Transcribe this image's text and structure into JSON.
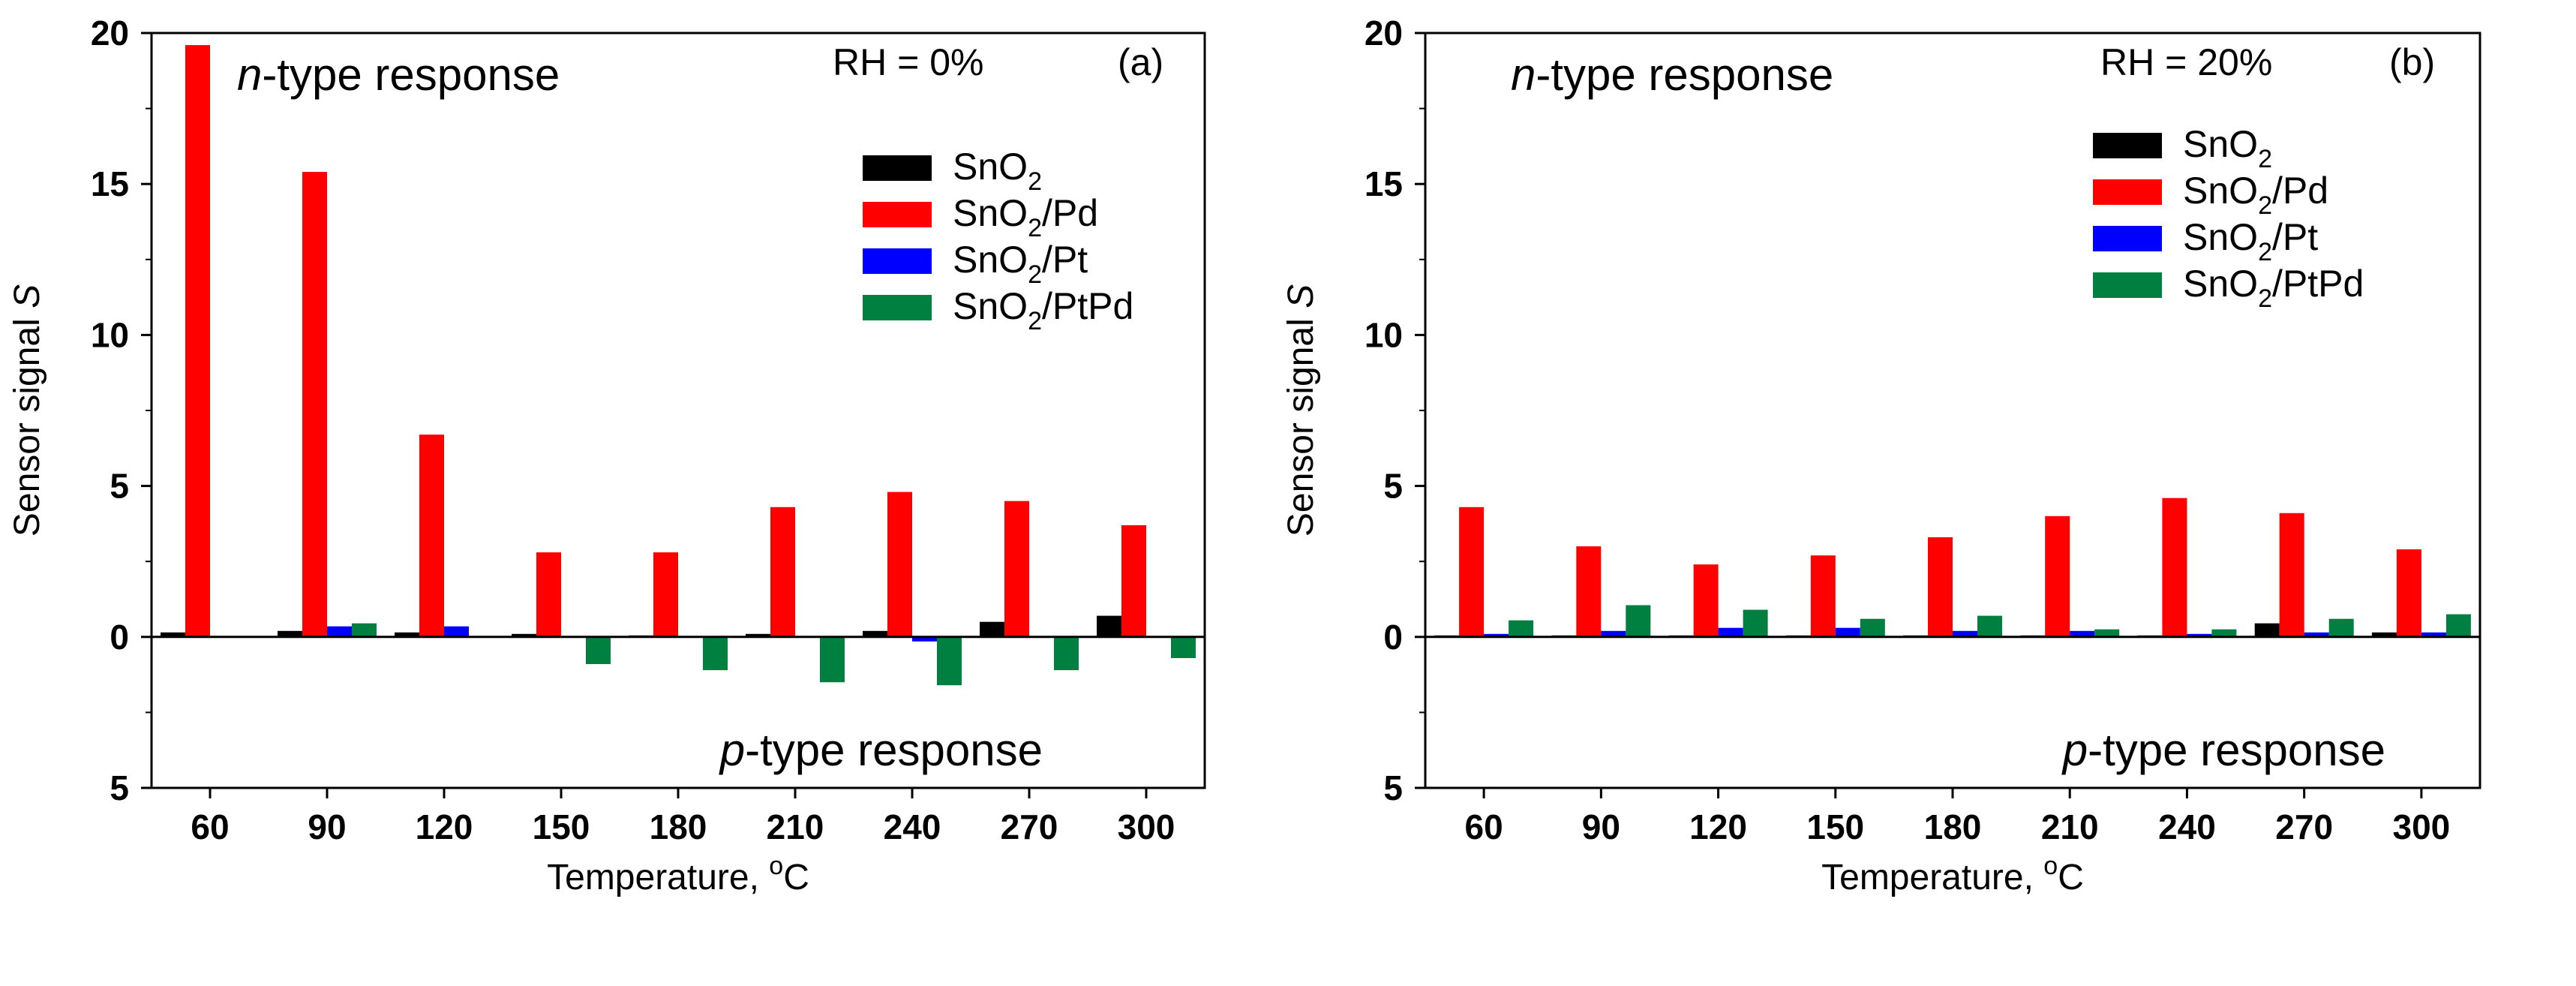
{
  "chart_data": [
    {
      "type": "bar",
      "panel_label": "(a)",
      "condition_label": "RH = 0%",
      "top_annotation": {
        "italic": "n",
        "rest": "-type response"
      },
      "bottom_annotation": {
        "italic": "p",
        "rest": "-type response"
      },
      "xlabel": {
        "text": "Temperature, ",
        "sup": "o",
        "unit": "C"
      },
      "ylabel": {
        "text": "Sensor signal ",
        "italic": "S"
      },
      "ylim": [
        -5,
        20
      ],
      "y_tick_values": [
        -5,
        0,
        5,
        10,
        15,
        20
      ],
      "y_tick_labels": [
        "5",
        "0",
        "5",
        "10",
        "15",
        "20"
      ],
      "categories": [
        "60",
        "90",
        "120",
        "150",
        "180",
        "210",
        "240",
        "270",
        "300"
      ],
      "legend_position": "upper-right",
      "series": [
        {
          "name": "SnO2",
          "base": "SnO",
          "sub": "2",
          "suffix": "",
          "color": "#000000",
          "values": [
            0.15,
            0.2,
            0.15,
            0.1,
            0.05,
            0.1,
            0.2,
            0.5,
            0.7
          ]
        },
        {
          "name": "SnO2/Pd",
          "base": "SnO",
          "sub": "2",
          "suffix": "/Pd",
          "color": "#ff0000",
          "values": [
            19.6,
            15.4,
            6.7,
            2.8,
            2.8,
            4.3,
            4.8,
            4.5,
            3.7
          ]
        },
        {
          "name": "SnO2/Pt",
          "base": "SnO",
          "sub": "2",
          "suffix": "/Pt",
          "color": "#0000ff",
          "values": [
            0.0,
            0.35,
            0.35,
            0.0,
            0.0,
            0.0,
            -0.15,
            0.0,
            0.0
          ]
        },
        {
          "name": "SnO2/PtPd",
          "base": "SnO",
          "sub": "2",
          "suffix": "/PtPd",
          "color": "#008040",
          "values": [
            0.0,
            0.45,
            0.0,
            -0.9,
            -1.1,
            -1.5,
            -1.6,
            -1.1,
            -0.7
          ]
        }
      ]
    },
    {
      "type": "bar",
      "panel_label": "(b)",
      "condition_label": "RH = 20%",
      "top_annotation": {
        "italic": "n",
        "rest": "-type response"
      },
      "bottom_annotation": {
        "italic": "p",
        "rest": "-type response"
      },
      "xlabel": {
        "text": "Temperature, ",
        "sup": "o",
        "unit": "C"
      },
      "ylabel": {
        "text": "Sensor signal ",
        "italic": "S"
      },
      "ylim": [
        -5,
        20
      ],
      "y_tick_values": [
        -5,
        0,
        5,
        10,
        15,
        20
      ],
      "y_tick_labels": [
        "5",
        "0",
        "5",
        "10",
        "15",
        "20"
      ],
      "categories": [
        "60",
        "90",
        "120",
        "150",
        "180",
        "210",
        "240",
        "270",
        "300"
      ],
      "legend_position": "upper-right",
      "series": [
        {
          "name": "SnO2",
          "base": "SnO",
          "sub": "2",
          "suffix": "",
          "color": "#000000",
          "values": [
            0.05,
            0.05,
            0.05,
            0.05,
            0.05,
            0.05,
            0.05,
            0.45,
            0.15
          ]
        },
        {
          "name": "SnO2/Pd",
          "base": "SnO",
          "sub": "2",
          "suffix": "/Pd",
          "color": "#ff0000",
          "values": [
            4.3,
            3.0,
            2.4,
            2.7,
            3.3,
            4.0,
            4.6,
            4.1,
            2.9
          ]
        },
        {
          "name": "SnO2/Pt",
          "base": "SnO",
          "sub": "2",
          "suffix": "/Pt",
          "color": "#0000ff",
          "values": [
            0.1,
            0.2,
            0.3,
            0.3,
            0.2,
            0.2,
            0.1,
            0.15,
            0.15
          ]
        },
        {
          "name": "SnO2/PtPd",
          "base": "SnO",
          "sub": "2",
          "suffix": "/PtPd",
          "color": "#008040",
          "values": [
            0.55,
            1.05,
            0.9,
            0.6,
            0.7,
            0.25,
            0.25,
            0.6,
            0.75
          ]
        }
      ]
    }
  ]
}
